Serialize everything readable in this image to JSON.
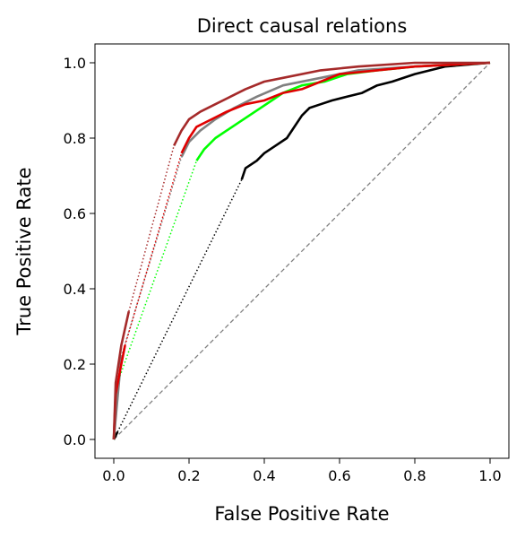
{
  "chart_data": {
    "type": "line",
    "title": "Direct causal relations",
    "xlabel": "False Positive Rate",
    "ylabel": "True Positive Rate",
    "xlim": [
      -0.05,
      1.05
    ],
    "ylim": [
      -0.05,
      1.05
    ],
    "xticks": [
      {
        "value": 0,
        "label": "0.0"
      },
      0.2,
      0.4,
      0.6,
      0.8,
      {
        "value": 1,
        "label": "1.0"
      }
    ],
    "yticks": [
      {
        "value": 0,
        "label": "0.0"
      },
      0.2,
      0.4,
      0.6,
      0.8,
      {
        "value": 1,
        "label": "1.0"
      }
    ],
    "grid": false,
    "series": [
      {
        "color": "#808080",
        "linestyle": "dashed",
        "x": [
          0,
          1
        ],
        "values": [
          0,
          1
        ]
      },
      {
        "color": "#000000",
        "linestyle": "solid",
        "x": [
          0,
          0.01,
          null,
          0.34,
          0.35,
          0.38,
          0.4,
          0.43,
          0.46,
          0.48,
          0.5,
          0.52,
          0.55,
          0.58,
          0.62,
          0.66,
          0.7,
          0.74,
          0.8,
          0.88,
          1
        ],
        "values": [
          0,
          0.02,
          null,
          0.69,
          0.72,
          0.74,
          0.76,
          0.78,
          0.8,
          0.83,
          0.86,
          0.88,
          0.89,
          0.9,
          0.91,
          0.92,
          0.94,
          0.95,
          0.97,
          0.99,
          1
        ]
      },
      {
        "color": "#000000",
        "linestyle": "dotted",
        "x": [
          0.01,
          0.34
        ],
        "values": [
          0.02,
          0.69
        ]
      },
      {
        "color": "#00ff00",
        "linestyle": "solid",
        "x": [
          0,
          0.01,
          null,
          0.22,
          0.24,
          0.27,
          0.3,
          0.33,
          0.36,
          0.39,
          0.42,
          0.45,
          0.5,
          0.56,
          0.62,
          0.7,
          0.8,
          1
        ],
        "values": [
          0,
          0.15,
          null,
          0.74,
          0.77,
          0.8,
          0.82,
          0.84,
          0.86,
          0.88,
          0.9,
          0.92,
          0.94,
          0.95,
          0.97,
          0.98,
          0.99,
          1
        ]
      },
      {
        "color": "#00ff00",
        "linestyle": "dotted",
        "x": [
          0.01,
          0.22
        ],
        "values": [
          0.15,
          0.74
        ]
      },
      {
        "color": "#808080",
        "linestyle": "solid",
        "x": [
          0,
          0.02,
          null,
          0.18,
          0.2,
          0.23,
          0.27,
          0.32,
          0.38,
          0.45,
          0.55,
          0.65,
          0.8,
          1
        ],
        "values": [
          0,
          0.22,
          null,
          0.75,
          0.79,
          0.82,
          0.85,
          0.88,
          0.91,
          0.94,
          0.96,
          0.98,
          0.99,
          1
        ]
      },
      {
        "color": "#808080",
        "linestyle": "dotted",
        "x": [
          0.02,
          0.18
        ],
        "values": [
          0.22,
          0.75
        ]
      },
      {
        "color": "#e00000",
        "linestyle": "solid",
        "x": [
          0,
          0.005,
          0.02,
          0.03,
          null,
          0.18,
          0.2,
          0.22,
          0.26,
          0.3,
          0.35,
          0.4,
          0.45,
          0.5,
          0.55,
          0.6,
          0.7,
          0.8,
          1
        ],
        "values": [
          0,
          0.12,
          0.2,
          0.25,
          null,
          0.76,
          0.8,
          0.83,
          0.85,
          0.87,
          0.89,
          0.9,
          0.92,
          0.93,
          0.95,
          0.97,
          0.98,
          0.99,
          1
        ]
      },
      {
        "color": "#e00000",
        "linestyle": "dotted",
        "x": [
          0.03,
          0.18
        ],
        "values": [
          0.25,
          0.76
        ]
      },
      {
        "color": "#a52a2a",
        "linestyle": "solid",
        "x": [
          0,
          0.005,
          0.02,
          0.04,
          null,
          0.16,
          0.18,
          0.2,
          0.23,
          0.27,
          0.31,
          0.35,
          0.4,
          0.45,
          0.55,
          0.65,
          0.8,
          1
        ],
        "values": [
          0,
          0.15,
          0.25,
          0.34,
          null,
          0.78,
          0.82,
          0.85,
          0.87,
          0.89,
          0.91,
          0.93,
          0.95,
          0.96,
          0.98,
          0.99,
          1.0,
          1
        ]
      },
      {
        "color": "#a52a2a",
        "linestyle": "dotted",
        "x": [
          0.04,
          0.16
        ],
        "values": [
          0.34,
          0.78
        ]
      }
    ]
  }
}
